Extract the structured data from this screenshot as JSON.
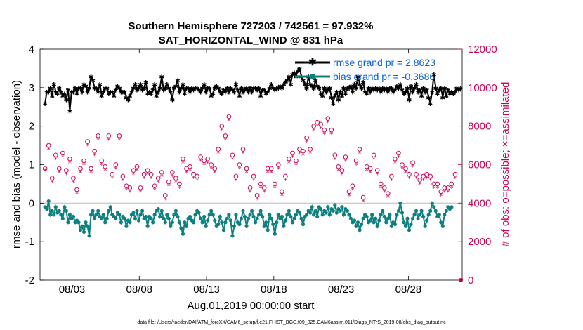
{
  "colors": {
    "rmse": "#000000",
    "bias": "#0e8080",
    "obs": "#cc0055",
    "zero_line": "#cccccc",
    "legend_text": "#0a5fd6"
  },
  "chart_data": {
    "type": "line",
    "title": "Southern Hemisphere 727203 / 742561 = 97.932%",
    "subtitle": "SAT_HORIZONTAL_WIND @ 831 hPa",
    "xlabel": "Aug.01,2019 00:00:00 start",
    "ylabel_left": "rmse and bias (model - observation)",
    "ylabel_right": "# of obs: o=possible; ×=assimilated",
    "footnote": "data file: /Users/raeder/DAI/ATM_forcXX/CAM6_setup/f.e21.FHIST_BGC.f09_025.CAM6assim.011/Diags_NTrS_2019-08/obs_diag_output.nc",
    "x_tick_labels": [
      "08/03",
      "08/08",
      "08/13",
      "08/18",
      "08/23",
      "08/28"
    ],
    "x_tick_days": [
      3,
      8,
      13,
      18,
      23,
      28
    ],
    "xlim": [
      0.625,
      32.0
    ],
    "ylim_left": [
      -2,
      4
    ],
    "yticks_left": [
      "-2",
      "-1",
      "0",
      "1",
      "2",
      "3",
      "4"
    ],
    "ylim_right": [
      0,
      12000
    ],
    "yticks_right": [
      "0",
      "2000",
      "4000",
      "6000",
      "8000",
      "10000",
      "12000"
    ],
    "grid": false,
    "legend_position": "top-right",
    "legend": [
      "rmse grand pr = 2.8623",
      "bias grand pr = -0.3686"
    ],
    "series": [
      {
        "name": "rmse grand pr = 2.8623",
        "axis": "left",
        "marker": "star",
        "values": [
          2.6,
          2.9,
          2.9,
          3.0,
          2.8,
          3.1,
          2.9,
          2.85,
          3.0,
          2.9,
          2.8,
          2.85,
          2.7,
          2.95,
          2.4,
          2.9,
          2.9,
          3.0,
          2.85,
          3.0,
          3.0,
          2.9,
          3.1,
          3.05,
          2.9,
          3.0,
          3.3,
          3.2,
          3.0,
          3.0,
          2.9,
          3.1,
          2.8,
          2.9,
          3.0,
          3.0,
          2.85,
          2.9,
          2.9,
          2.8,
          2.95,
          3.05,
          3.0,
          2.9,
          2.9,
          2.9,
          2.75,
          2.7,
          2.8,
          2.9,
          3.0,
          3.1,
          2.95,
          3.0,
          3.1,
          2.95,
          3.0,
          3.15,
          2.85,
          2.9,
          2.85,
          2.95,
          3.1,
          2.8,
          2.9,
          3.0,
          3.3,
          2.95,
          3.0,
          3.1,
          3.0,
          2.9,
          2.7,
          3.0,
          3.05,
          3.2,
          2.9,
          3.0,
          3.1,
          2.85,
          3.0,
          3.0,
          2.9,
          3.0,
          2.95,
          3.0,
          3.0,
          2.95,
          2.9,
          3.0,
          3.1,
          2.9,
          3.0,
          3.0,
          2.8,
          2.85,
          3.0,
          3.05,
          3.0,
          2.9,
          2.85,
          2.95,
          2.9,
          3.0,
          2.9,
          3.0,
          2.95,
          2.9,
          3.1,
          2.95,
          2.8,
          3.0,
          2.9,
          2.95,
          3.0,
          2.9,
          3.0,
          2.9,
          3.0,
          3.0,
          2.95,
          3.0,
          2.8,
          2.95,
          2.95,
          2.85,
          2.9,
          3.0,
          3.1,
          3.0,
          2.95,
          3.0,
          3.0,
          3.05,
          3.0,
          3.1,
          3.15,
          3.2,
          3.3,
          3.1,
          3.35,
          3.4,
          3.3,
          3.45,
          3.5,
          3.3,
          3.2,
          3.1,
          3.0,
          3.3,
          3.1,
          3.05,
          3.0,
          3.2,
          3.05,
          3.0,
          2.85,
          2.8,
          3.0,
          2.9,
          2.95,
          3.0,
          2.75,
          2.6,
          2.8,
          2.9,
          2.7,
          2.9,
          2.8,
          3.0,
          2.85,
          3.0,
          3.0,
          3.05,
          2.9,
          3.1,
          3.0,
          3.3,
          3.1,
          3.0,
          3.15,
          2.9,
          2.85,
          3.0,
          2.9,
          3.0,
          2.95,
          3.0,
          2.95,
          3.0,
          2.9,
          3.0,
          2.95,
          3.0,
          2.9,
          3.0,
          3.0,
          2.9,
          2.95,
          3.05,
          3.0,
          3.1,
          2.95,
          2.85,
          2.9,
          3.0,
          2.7,
          3.05,
          2.9,
          3.0,
          3.1,
          2.9,
          2.95,
          2.8,
          3.0,
          2.9,
          2.95,
          2.75,
          2.6,
          2.9,
          3.35,
          3.0,
          2.85,
          2.95,
          3.0,
          2.75,
          3.0,
          2.8,
          2.95,
          2.85,
          2.9,
          2.85,
          2.9,
          3.0,
          2.95,
          3.0
        ]
      },
      {
        "name": "bias grand pr = -0.3686",
        "axis": "left",
        "marker": "dot",
        "values": [
          -0.1,
          -0.15,
          0.05,
          -0.3,
          -0.2,
          -0.3,
          -0.1,
          -0.25,
          -0.2,
          -0.3,
          -0.4,
          -0.1,
          -0.2,
          -0.5,
          -0.3,
          -0.4,
          -0.35,
          -0.5,
          -0.45,
          -0.5,
          -0.7,
          -0.6,
          -0.75,
          -0.5,
          -0.6,
          -0.85,
          -0.3,
          -0.2,
          -0.4,
          -0.3,
          -0.2,
          -0.35,
          -0.4,
          -0.3,
          -0.5,
          -0.4,
          -0.2,
          -0.1,
          -0.3,
          -0.35,
          -0.4,
          -0.25,
          -0.3,
          -0.5,
          -0.35,
          -0.4,
          -0.6,
          -0.45,
          -0.5,
          -0.3,
          -0.25,
          -0.4,
          -0.2,
          -0.45,
          -0.3,
          -0.2,
          -0.4,
          -0.35,
          -0.6,
          -0.35,
          -0.4,
          -0.5,
          -0.3,
          -0.2,
          -0.15,
          -0.35,
          -0.2,
          -0.4,
          -0.5,
          -0.3,
          -0.4,
          -0.6,
          -0.5,
          -0.3,
          -0.2,
          -0.35,
          -0.5,
          -0.65,
          -0.8,
          -0.5,
          -0.6,
          -0.4,
          -0.35,
          -0.45,
          -0.5,
          -0.3,
          -0.2,
          -0.25,
          -0.4,
          -0.5,
          -0.35,
          -0.6,
          -0.45,
          -0.3,
          -0.2,
          -0.3,
          -0.45,
          -0.6,
          -0.55,
          -0.35,
          -0.5,
          -0.7,
          -0.5,
          -0.4,
          -0.3,
          -0.45,
          -0.85,
          -0.6,
          -0.3,
          -0.5,
          -0.55,
          -0.4,
          -0.2,
          -0.35,
          -0.6,
          -0.4,
          -0.3,
          -0.2,
          -0.35,
          -0.5,
          -0.4,
          -0.3,
          -0.2,
          -0.35,
          -0.6,
          -0.5,
          -0.7,
          -0.3,
          -0.4,
          -0.55,
          -0.8,
          -0.5,
          -0.3,
          -0.4,
          -0.35,
          -0.6,
          -0.45,
          -0.3,
          -0.2,
          -0.35,
          -0.5,
          -0.4,
          -0.3,
          -0.2,
          -0.25,
          -0.4,
          -0.55,
          -0.35,
          -0.3,
          -0.2,
          -0.25,
          -0.1,
          -0.3,
          -0.2,
          -0.35,
          -0.1,
          -0.15,
          -0.3,
          -0.2,
          -0.25,
          -0.1,
          -0.3,
          -0.15,
          -0.2,
          -0.05,
          -0.25,
          -0.15,
          -0.2,
          -0.1,
          -0.3,
          -0.15,
          -0.2,
          -0.3,
          -0.4,
          -0.5,
          -0.45,
          -0.6,
          -0.5,
          -0.7,
          -0.55,
          -0.4,
          -0.3,
          -0.35,
          -0.5,
          -0.45,
          -0.3,
          -0.5,
          -0.4,
          -0.6,
          -0.45,
          -0.3,
          -0.2,
          -0.35,
          -0.5,
          -0.4,
          -0.3,
          -0.6,
          -0.5,
          -0.55,
          -0.3,
          -0.2,
          0.0,
          -0.25,
          -0.5,
          -0.6,
          -0.4,
          -0.7,
          -0.55,
          -0.4,
          -0.3,
          -0.2,
          -0.4,
          -0.3,
          -0.2,
          -0.35,
          -0.6,
          -0.45,
          -0.3,
          -0.2,
          0.0,
          -0.1,
          -0.2,
          -0.35,
          -0.3,
          -0.5,
          -0.6,
          -0.3,
          -0.2,
          -0.1,
          -0.15,
          -0.1
        ]
      },
      {
        "name": "possible",
        "axis": "right",
        "marker": "circle",
        "values": [
          5800,
          5800,
          7000,
          5700,
          5300,
          5400,
          6500,
          6900,
          5800,
          5600,
          6600,
          6200,
          5700,
          5800,
          6300,
          6000,
          5300,
          4300,
          4700,
          5300,
          5800,
          5700,
          6200,
          6800,
          7200,
          5700,
          5800,
          6000,
          6700,
          8000,
          7500,
          6400,
          6200,
          5500,
          5900,
          5500,
          7500,
          7500,
          5500,
          8000,
          6000,
          5500,
          7500,
          6200,
          5400,
          4800,
          4900,
          4400,
          4800,
          5000,
          5700,
          5500,
          5900,
          5800,
          4800,
          5300,
          5500,
          4800,
          5700,
          5300,
          5500,
          5100,
          4900,
          4600,
          5300,
          5800,
          5600,
          5600,
          4400,
          5200,
          5100,
          5700,
          5600,
          5300,
          5300,
          5500,
          5000,
          5800,
          6300,
          5000,
          5800,
          6600,
          5900,
          4400,
          5500,
          5700,
          5400,
          5800,
          6400,
          6600,
          6200,
          5600,
          6300,
          6500,
          6000,
          5600,
          5800,
          6500,
          6800,
          8000,
          8000,
          7100,
          7500,
          7000,
          8500,
          7000,
          6500,
          6200,
          5400,
          6200,
          6000,
          5600,
          6800,
          5200,
          5800,
          5000,
          4800,
          4500,
          5400,
          4700,
          4400,
          4900,
          5000,
          5300,
          4800,
          5600,
          5800,
          6000,
          5800,
          5300,
          5000,
          5700,
          6000,
          6100,
          4600,
          5200,
          5400,
          5800,
          6300,
          7500,
          6600,
          6500,
          6200,
          5800,
          6800,
          6600,
          6700,
          7200,
          7400,
          7000,
          6800,
          7500,
          8000,
          7500,
          8200,
          8600,
          8100,
          7300,
          7800,
          8300,
          8400,
          8800,
          7800,
          7600,
          6500,
          6800,
          5900,
          6000,
          5700,
          6200,
          6400,
          5300,
          4600,
          5000,
          4900,
          5800,
          6200,
          6900,
          6800,
          5200,
          4300,
          4600,
          5900,
          6100,
          5800,
          6400,
          6500,
          5900,
          5700,
          4500,
          5000,
          4300,
          4800,
          5600,
          4500,
          4900,
          5400,
          6400,
          6300,
          6200,
          6600,
          6200,
          6000,
          5300,
          5800,
          5600,
          5500,
          5700,
          6100,
          5400,
          5500,
          5700,
          5200,
          5000,
          5400,
          5300,
          5500,
          5100,
          5400,
          5200,
          5000,
          5400,
          5000,
          5300,
          4600,
          4200,
          4800,
          5200,
          4800,
          5600,
          5000,
          4900,
          5500
        ]
      },
      {
        "name": "assimilated",
        "axis": "right",
        "marker": "x",
        "values": [
          5700,
          5700,
          6800,
          5500,
          5100,
          5200,
          6300,
          6700,
          5600,
          5400,
          6400,
          6000,
          5500,
          5600,
          6100,
          5800,
          5100,
          4100,
          4500,
          5100,
          5600,
          5500,
          6000,
          6600,
          7000,
          5500,
          5600,
          5800,
          6500,
          7800,
          7300,
          6200,
          6000,
          5300,
          5700,
          5300,
          7300,
          7300,
          5300,
          7800,
          5800,
          5300,
          7300,
          6000,
          5200,
          4600,
          4700,
          4200,
          4600,
          4800,
          5500,
          5300,
          5700,
          5600,
          4600,
          5100,
          5300,
          4600,
          5500,
          5100,
          5300,
          4900,
          4700,
          4400,
          5100,
          5600,
          5400,
          5400,
          4200,
          5000,
          4900,
          5500,
          5400,
          5100,
          5100,
          5300,
          4800,
          5600,
          6100,
          4800,
          5600,
          6400,
          5700,
          4200,
          5300,
          5500,
          5200,
          5600,
          6200,
          6400,
          6000,
          5400,
          6100,
          6300,
          5800,
          5400,
          5600,
          6300,
          6600,
          7800,
          7800,
          6900,
          7300,
          6800,
          8300,
          6800,
          6300,
          6000,
          5200,
          6000,
          5800,
          5400,
          6600,
          5000,
          5600,
          4800,
          4600,
          4300,
          5200,
          4500,
          4200,
          4700,
          4800,
          5100,
          4600,
          5400,
          5600,
          5800,
          5600,
          5100,
          4800,
          5500,
          5800,
          5900,
          4400,
          5000,
          5200,
          5600,
          6100,
          7300,
          6400,
          6300,
          6000,
          5600,
          6600,
          6400,
          6500,
          7000,
          7200,
          6800,
          6600,
          7300,
          7800,
          7300,
          8000,
          8400,
          7900,
          7100,
          7600,
          8100,
          8200,
          8600,
          7600,
          7400,
          6300,
          6600,
          5700,
          5800,
          5500,
          6000,
          6200,
          5100,
          4400,
          4800,
          4700,
          5600,
          6000,
          6700,
          6600,
          5000,
          4100,
          4400,
          5700,
          5900,
          5600,
          6200,
          6300,
          5700,
          5500,
          4300,
          4800,
          4100,
          4600,
          5400,
          4300,
          4700,
          5200,
          6200,
          6100,
          6000,
          6400,
          6000,
          5800,
          5100,
          5600,
          5400,
          5300,
          5500,
          5900,
          5200,
          5300,
          5500,
          5000,
          4800,
          5200,
          5100,
          5300,
          4900,
          5200,
          5000,
          4800,
          5200,
          4800,
          5100,
          4400,
          4000,
          4600,
          5000,
          4600,
          5400,
          4800,
          4700,
          5300
        ]
      }
    ]
  }
}
